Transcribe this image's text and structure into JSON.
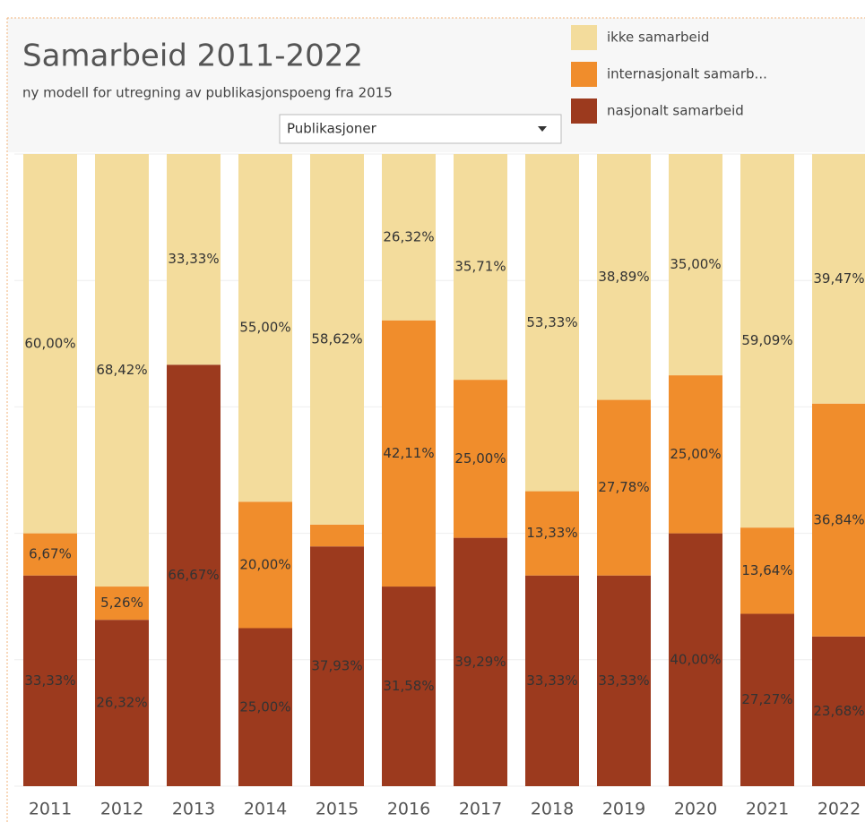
{
  "chart_data": {
    "type": "stacked_bar",
    "title": "Samarbeid 2011-2022",
    "subtitle": "ny modell for utregning av publikasjonspoeng fra 2015",
    "filter": "Publikasjoner",
    "categories": [
      "2011",
      "2012",
      "2013",
      "2014",
      "2015",
      "2016",
      "2017",
      "2018",
      "2019",
      "2020",
      "2021",
      "2022"
    ],
    "series": [
      {
        "name": "ikke samarbeid",
        "color": "#f3dc9c",
        "values": [
          60.0,
          68.42,
          33.33,
          55.0,
          58.62,
          26.32,
          35.71,
          53.33,
          38.89,
          35.0,
          59.09,
          39.47
        ],
        "value_labels": [
          "60,00%",
          "68,42%",
          "33,33%",
          "55,00%",
          "58,62%",
          "26,32%",
          "35,71%",
          "53,33%",
          "38,89%",
          "35,00%",
          "59,09%",
          "39,47%"
        ]
      },
      {
        "name": "internasjonalt samarb...",
        "color": "#f08d2c",
        "values": [
          6.67,
          5.26,
          0,
          20.0,
          3.45,
          42.11,
          25.0,
          13.33,
          27.78,
          25.0,
          13.64,
          36.84
        ],
        "value_labels": [
          "6,67%",
          "5,26%",
          null,
          "20,00%",
          null,
          "42,11%",
          "25,00%",
          "13,33%",
          "27,78%",
          "25,00%",
          "13,64%",
          "36,84%"
        ]
      },
      {
        "name": "nasjonalt samarbeid",
        "color": "#9c3a1e",
        "values": [
          33.33,
          26.32,
          66.67,
          25.0,
          37.93,
          31.58,
          39.29,
          33.33,
          33.33,
          40.0,
          27.27,
          23.68
        ],
        "value_labels": [
          "33,33%",
          "26,32%",
          "66,67%",
          "25,00%",
          "37,93%",
          "31,58%",
          "39,29%",
          "33,33%",
          "33,33%",
          "40,00%",
          "27,27%",
          "23,68%"
        ]
      }
    ],
    "ylim": [
      0,
      100
    ],
    "yticks": [
      0,
      20,
      40,
      60,
      80,
      100
    ],
    "grid": true
  }
}
